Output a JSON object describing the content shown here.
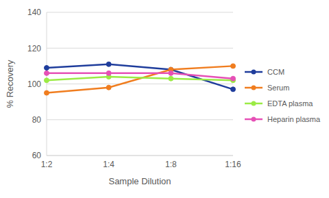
{
  "chart_data": {
    "type": "line",
    "x_label": "Sample Dilution",
    "y_label": "% Recovery",
    "categories": [
      "1:2",
      "1:4",
      "1:8",
      "1:16"
    ],
    "series": [
      {
        "name": "CCM",
        "color": "#1f3d9c",
        "values": [
          109,
          111,
          108,
          97
        ]
      },
      {
        "name": "Serum",
        "color": "#f07d1f",
        "values": [
          95,
          98,
          108,
          110
        ]
      },
      {
        "name": "EDTA plasma",
        "color": "#9beb45",
        "values": [
          102,
          104,
          103,
          102
        ]
      },
      {
        "name": "Heparin plasma",
        "color": "#e650b6",
        "values": [
          106,
          106,
          106,
          103
        ]
      }
    ],
    "ylim": [
      60,
      140
    ],
    "yticks": [
      60,
      80,
      100,
      120,
      140
    ],
    "grid": true,
    "legend": "right",
    "marker": "circle"
  }
}
